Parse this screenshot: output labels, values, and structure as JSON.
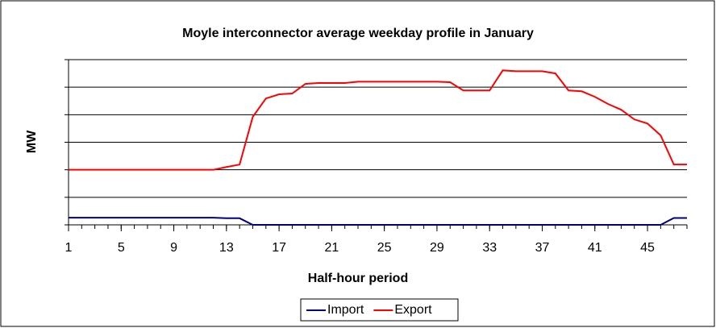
{
  "chart_data": {
    "type": "line",
    "title": "Moyle interconnector average weekday profile in January",
    "x_label": "Half-hour period",
    "y_label": "MW",
    "x": [
      1,
      2,
      3,
      4,
      5,
      6,
      7,
      8,
      9,
      10,
      11,
      12,
      13,
      14,
      15,
      16,
      17,
      18,
      19,
      20,
      21,
      22,
      23,
      24,
      25,
      26,
      27,
      28,
      29,
      30,
      31,
      32,
      33,
      34,
      35,
      36,
      37,
      38,
      39,
      40,
      41,
      42,
      43,
      44,
      45,
      46,
      47,
      48
    ],
    "series": [
      {
        "name": "Import",
        "color": "#000080",
        "values": [
          0.26,
          0.26,
          0.26,
          0.26,
          0.26,
          0.26,
          0.26,
          0.26,
          0.26,
          0.26,
          0.26,
          0.26,
          0.24,
          0.24,
          0,
          0,
          0,
          0,
          0,
          0,
          0,
          0,
          0,
          0,
          0,
          0,
          0,
          0,
          0,
          0,
          0,
          0,
          0,
          0,
          0,
          0,
          0,
          0,
          0,
          0,
          0,
          0,
          0,
          0,
          0,
          0,
          0.25,
          0.25
        ]
      },
      {
        "name": "Export",
        "color": "#ff0000",
        "values": [
          2.0,
          2.0,
          2.0,
          2.0,
          2.0,
          2.0,
          2.0,
          2.0,
          2.0,
          2.0,
          2.0,
          2.0,
          2.1,
          2.19,
          3.92,
          4.59,
          4.74,
          4.77,
          5.12,
          5.15,
          5.15,
          5.15,
          5.2,
          5.2,
          5.2,
          5.2,
          5.2,
          5.2,
          5.2,
          5.18,
          4.88,
          4.88,
          4.88,
          5.61,
          5.58,
          5.58,
          5.58,
          5.5,
          4.88,
          4.85,
          4.65,
          4.39,
          4.18,
          3.83,
          3.68,
          3.25,
          2.19,
          2.19
        ]
      }
    ],
    "xlim": [
      1,
      48
    ],
    "xticks": [
      1,
      5,
      9,
      13,
      17,
      21,
      25,
      29,
      33,
      37,
      41,
      45
    ],
    "ylim": [
      0,
      6
    ],
    "yticks": [
      0,
      1,
      2,
      3,
      4,
      5,
      6
    ],
    "grid": true,
    "legend": "bottom"
  }
}
